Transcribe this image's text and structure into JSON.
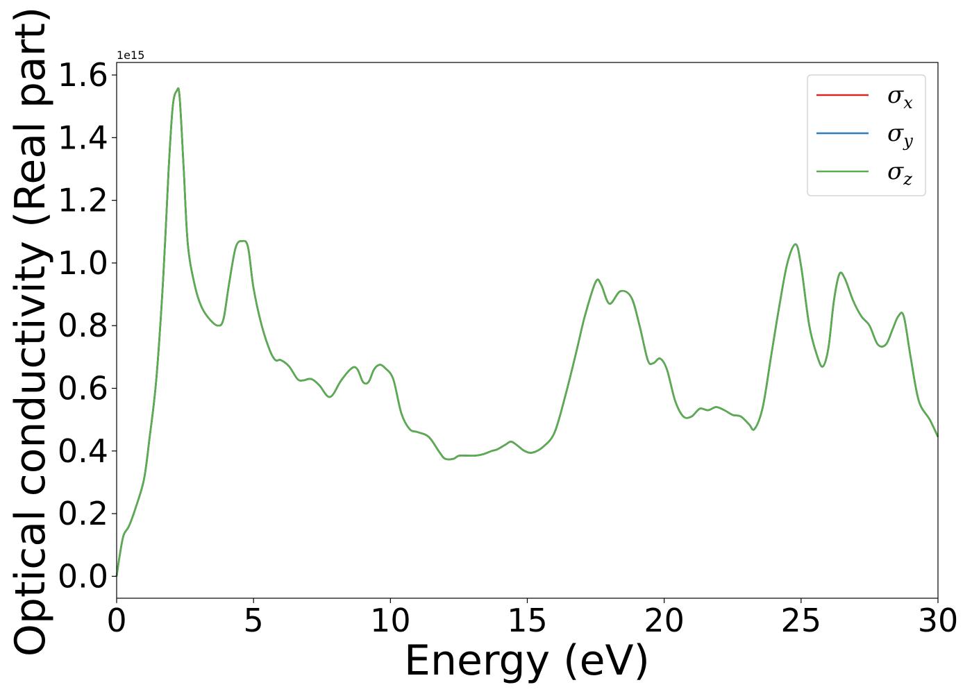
{
  "chart_data": {
    "type": "line",
    "xlabel": "Energy (eV)",
    "ylabel": "Optical conductivity (Real part)",
    "y_offset_label": "1e15",
    "xlim": [
      0,
      30
    ],
    "ylim": [
      -0.07,
      1.64
    ],
    "x_ticks": [
      0,
      5,
      10,
      15,
      20,
      25,
      30
    ],
    "x_tick_labels": [
      "0",
      "5",
      "10",
      "15",
      "20",
      "25",
      "30"
    ],
    "y_ticks": [
      0.0,
      0.2,
      0.4,
      0.6,
      0.8,
      1.0,
      1.2,
      1.4,
      1.6
    ],
    "y_tick_labels": [
      "0.0",
      "0.2",
      "0.4",
      "0.6",
      "0.8",
      "1.0",
      "1.2",
      "1.4",
      "1.6"
    ],
    "grid": false,
    "legend_position": "top-right",
    "x": [
      0.0,
      0.1,
      0.25,
      0.45,
      0.7,
      1.0,
      1.2,
      1.45,
      1.7,
      1.9,
      2.05,
      2.2,
      2.3,
      2.45,
      2.6,
      2.85,
      3.1,
      3.4,
      3.7,
      3.9,
      4.1,
      4.35,
      4.6,
      4.8,
      5.0,
      5.3,
      5.6,
      5.8,
      6.0,
      6.3,
      6.6,
      6.8,
      7.1,
      7.4,
      7.7,
      7.9,
      8.2,
      8.6,
      8.8,
      9.0,
      9.2,
      9.4,
      9.6,
      9.8,
      10.1,
      10.4,
      10.7,
      11.0,
      11.4,
      11.8,
      12.0,
      12.3,
      12.5,
      12.8,
      13.1,
      13.4,
      13.7,
      13.9,
      14.2,
      14.4,
      14.6,
      14.9,
      15.2,
      15.6,
      16.0,
      16.4,
      16.8,
      17.1,
      17.5,
      17.7,
      18.0,
      18.4,
      18.8,
      19.1,
      19.4,
      19.6,
      19.85,
      20.1,
      20.4,
      20.7,
      21.0,
      21.3,
      21.6,
      21.9,
      22.2,
      22.5,
      22.8,
      23.1,
      23.3,
      23.6,
      23.9,
      24.2,
      24.5,
      24.8,
      25.0,
      25.3,
      25.6,
      25.8,
      26.0,
      26.2,
      26.4,
      26.6,
      26.9,
      27.2,
      27.5,
      27.8,
      28.1,
      28.35,
      28.55,
      28.75,
      29.0,
      29.3,
      29.7,
      30.0
    ],
    "series": [
      {
        "name": "σ_x",
        "color": "#d62728",
        "y": [
          0.0,
          0.06,
          0.13,
          0.16,
          0.22,
          0.31,
          0.44,
          0.63,
          0.95,
          1.3,
          1.5,
          1.55,
          1.53,
          1.3,
          1.06,
          0.93,
          0.86,
          0.82,
          0.8,
          0.82,
          0.93,
          1.05,
          1.07,
          1.05,
          0.92,
          0.8,
          0.72,
          0.69,
          0.69,
          0.67,
          0.63,
          0.625,
          0.63,
          0.61,
          0.575,
          0.58,
          0.625,
          0.665,
          0.66,
          0.62,
          0.62,
          0.66,
          0.675,
          0.665,
          0.63,
          0.52,
          0.47,
          0.46,
          0.445,
          0.395,
          0.375,
          0.375,
          0.385,
          0.385,
          0.385,
          0.39,
          0.4,
          0.405,
          0.42,
          0.43,
          0.42,
          0.4,
          0.395,
          0.415,
          0.46,
          0.58,
          0.72,
          0.83,
          0.94,
          0.93,
          0.87,
          0.91,
          0.89,
          0.8,
          0.69,
          0.68,
          0.695,
          0.66,
          0.56,
          0.51,
          0.51,
          0.535,
          0.53,
          0.54,
          0.53,
          0.515,
          0.51,
          0.485,
          0.47,
          0.54,
          0.7,
          0.86,
          1.0,
          1.06,
          0.99,
          0.8,
          0.7,
          0.67,
          0.73,
          0.88,
          0.965,
          0.95,
          0.88,
          0.83,
          0.8,
          0.74,
          0.74,
          0.79,
          0.83,
          0.83,
          0.7,
          0.56,
          0.5,
          0.445
        ]
      },
      {
        "name": "σ_y",
        "color": "#2f7fbf",
        "y": [
          0.0,
          0.06,
          0.13,
          0.16,
          0.22,
          0.31,
          0.44,
          0.63,
          0.95,
          1.3,
          1.5,
          1.55,
          1.53,
          1.3,
          1.06,
          0.93,
          0.86,
          0.82,
          0.8,
          0.82,
          0.93,
          1.05,
          1.07,
          1.05,
          0.92,
          0.8,
          0.72,
          0.69,
          0.69,
          0.67,
          0.63,
          0.625,
          0.63,
          0.61,
          0.575,
          0.58,
          0.625,
          0.665,
          0.66,
          0.62,
          0.62,
          0.66,
          0.675,
          0.665,
          0.63,
          0.52,
          0.47,
          0.46,
          0.445,
          0.395,
          0.375,
          0.375,
          0.385,
          0.385,
          0.385,
          0.39,
          0.4,
          0.405,
          0.42,
          0.43,
          0.42,
          0.4,
          0.395,
          0.415,
          0.46,
          0.58,
          0.72,
          0.83,
          0.94,
          0.93,
          0.87,
          0.91,
          0.89,
          0.8,
          0.69,
          0.68,
          0.695,
          0.66,
          0.56,
          0.51,
          0.51,
          0.535,
          0.53,
          0.54,
          0.53,
          0.515,
          0.51,
          0.485,
          0.47,
          0.54,
          0.7,
          0.86,
          1.0,
          1.06,
          0.99,
          0.8,
          0.7,
          0.67,
          0.73,
          0.88,
          0.965,
          0.95,
          0.88,
          0.83,
          0.8,
          0.74,
          0.74,
          0.79,
          0.83,
          0.83,
          0.7,
          0.56,
          0.5,
          0.445
        ]
      },
      {
        "name": "σ_z",
        "color": "#5aad4e",
        "y": [
          0.0,
          0.06,
          0.13,
          0.16,
          0.22,
          0.31,
          0.44,
          0.63,
          0.95,
          1.3,
          1.5,
          1.55,
          1.53,
          1.3,
          1.06,
          0.93,
          0.86,
          0.82,
          0.8,
          0.82,
          0.93,
          1.05,
          1.07,
          1.05,
          0.92,
          0.8,
          0.72,
          0.69,
          0.69,
          0.67,
          0.63,
          0.625,
          0.63,
          0.61,
          0.575,
          0.58,
          0.625,
          0.665,
          0.66,
          0.62,
          0.62,
          0.66,
          0.675,
          0.665,
          0.63,
          0.52,
          0.47,
          0.46,
          0.445,
          0.395,
          0.375,
          0.375,
          0.385,
          0.385,
          0.385,
          0.39,
          0.4,
          0.405,
          0.42,
          0.43,
          0.42,
          0.4,
          0.395,
          0.415,
          0.46,
          0.58,
          0.72,
          0.83,
          0.94,
          0.93,
          0.87,
          0.91,
          0.89,
          0.8,
          0.69,
          0.68,
          0.695,
          0.66,
          0.56,
          0.51,
          0.51,
          0.535,
          0.53,
          0.54,
          0.53,
          0.515,
          0.51,
          0.485,
          0.47,
          0.54,
          0.7,
          0.86,
          1.0,
          1.06,
          0.99,
          0.8,
          0.7,
          0.67,
          0.73,
          0.88,
          0.965,
          0.95,
          0.88,
          0.83,
          0.8,
          0.74,
          0.74,
          0.79,
          0.83,
          0.83,
          0.7,
          0.56,
          0.5,
          0.445
        ]
      }
    ],
    "legend": [
      {
        "symbol": "σ",
        "subscript": "x",
        "color": "#d62728"
      },
      {
        "symbol": "σ",
        "subscript": "y",
        "color": "#2f7fbf"
      },
      {
        "symbol": "σ",
        "subscript": "z",
        "color": "#5aad4e"
      }
    ]
  }
}
